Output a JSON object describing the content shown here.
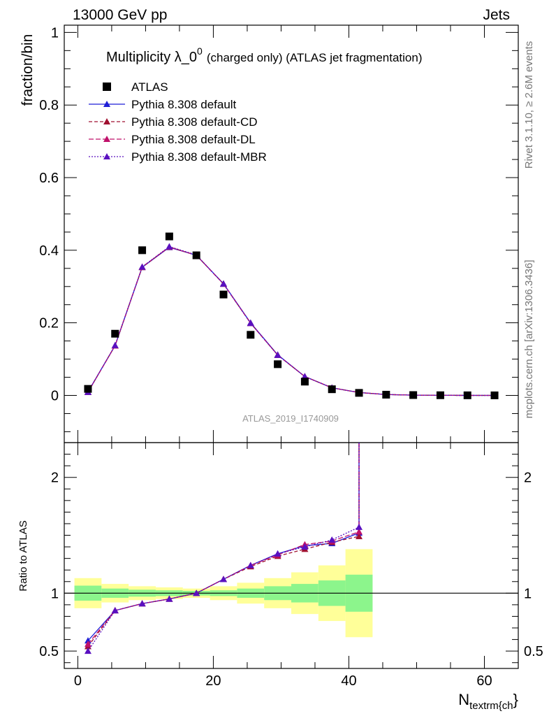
{
  "header": {
    "left": "13000 GeV pp",
    "right": "Jets"
  },
  "title": {
    "main_prefix": "Multiplicity λ_0",
    "main_sup": "0",
    "main_suffix": "(charged only) (ATLAS jet fragmentation)"
  },
  "side_labels": {
    "rivet": "Rivet 3.1.10, ≥ 2.6M events",
    "mcplots": "mcplots.cern.ch [arXiv:1306.3436]"
  },
  "watermark": "ATLAS_2019_I1740909",
  "axes": {
    "ylabel_top": "fraction/bin",
    "ylabel_bottom": "Ratio to ATLAS",
    "xlabel_main": "N",
    "xlabel_sub": "textrm{ch",
    "xlabel_end": "}"
  },
  "legend": [
    {
      "key": "atlas",
      "label": "ATLAS"
    },
    {
      "key": "default",
      "label": "Pythia 8.308 default"
    },
    {
      "key": "cd",
      "label": "Pythia 8.308 default-CD"
    },
    {
      "key": "dl",
      "label": "Pythia 8.308 default-DL"
    },
    {
      "key": "mbr",
      "label": "Pythia 8.308 default-MBR"
    }
  ],
  "colors": {
    "atlas": "#000000",
    "default": "#1f1fd6",
    "cd": "#a01030",
    "dl": "#c0106a",
    "mbr": "#5a10c0",
    "band_inner": "#8cf58c",
    "band_outer": "#ffff99"
  },
  "chart_data": [
    {
      "type": "scatter",
      "panel": "main",
      "xlim": [
        -2,
        65
      ],
      "ylim": [
        -0.13,
        1.02
      ],
      "yticks": [
        0,
        0.2,
        0.4,
        0.6,
        0.8,
        1
      ],
      "ytick_labels": [
        "0",
        "0.2",
        "0.4",
        "0.6",
        "0.8",
        "1"
      ],
      "bins": [
        [
          -0.5,
          3.5
        ],
        [
          3.5,
          7.5
        ],
        [
          7.5,
          11.5
        ],
        [
          11.5,
          15.5
        ],
        [
          15.5,
          19.5
        ],
        [
          19.5,
          23.5
        ],
        [
          23.5,
          27.5
        ],
        [
          27.5,
          31.5
        ],
        [
          31.5,
          35.5
        ],
        [
          35.5,
          39.5
        ],
        [
          39.5,
          43.5
        ],
        [
          43.5,
          47.5
        ],
        [
          47.5,
          51.5
        ],
        [
          51.5,
          55.5
        ],
        [
          55.5,
          59.5
        ],
        [
          59.5,
          63.5
        ]
      ],
      "x": [
        1.5,
        5.5,
        9.5,
        13.5,
        17.5,
        21.5,
        25.5,
        29.5,
        33.5,
        37.5,
        41.5,
        45.5,
        49.5,
        53.5,
        57.5,
        61.5
      ],
      "series": [
        {
          "key": "atlas",
          "name": "ATLAS",
          "values": [
            0.018,
            0.17,
            0.4,
            0.438,
            0.386,
            0.278,
            0.167,
            0.086,
            0.038,
            0.017,
            0.007,
            0.002,
            0.001,
            0.0005,
            0.0003,
            0.0002
          ]
        },
        {
          "key": "default",
          "name": "Pythia 8.308 default",
          "values": [
            0.01,
            0.137,
            0.353,
            0.408,
            0.386,
            0.308,
            0.2,
            0.112,
            0.052,
            0.021,
            0.008,
            0.0025,
            0.0008,
            0.0003,
            0.0001,
            5e-05
          ]
        },
        {
          "key": "cd",
          "name": "Pythia 8.308 default-CD",
          "values": [
            0.009,
            0.137,
            0.353,
            0.409,
            0.386,
            0.307,
            0.199,
            0.111,
            0.052,
            0.021,
            0.008,
            0.0025,
            0.0008,
            0.0003,
            0.0001,
            5e-05
          ]
        },
        {
          "key": "dl",
          "name": "Pythia 8.308 default-DL",
          "values": [
            0.009,
            0.137,
            0.354,
            0.409,
            0.386,
            0.307,
            0.199,
            0.111,
            0.052,
            0.021,
            0.008,
            0.0025,
            0.0008,
            0.0003,
            0.0001,
            5e-05
          ]
        },
        {
          "key": "mbr",
          "name": "Pythia 8.308 default-MBR",
          "values": [
            0.009,
            0.138,
            0.354,
            0.41,
            0.387,
            0.307,
            0.199,
            0.111,
            0.052,
            0.021,
            0.008,
            0.0025,
            0.0008,
            0.0003,
            0.0001,
            5e-05
          ]
        }
      ]
    },
    {
      "type": "line",
      "panel": "ratio",
      "xlim": [
        -2,
        65
      ],
      "ylim": [
        0.35,
        2.3
      ],
      "yticks": [
        0.5,
        1,
        2
      ],
      "ytick_labels": [
        "0.5",
        "1",
        "2"
      ],
      "xticks": [
        0,
        20,
        40,
        60
      ],
      "xtick_labels": [
        "0",
        "20",
        "40",
        "60"
      ],
      "reference": 1,
      "bins": [
        [
          -0.5,
          3.5
        ],
        [
          3.5,
          7.5
        ],
        [
          7.5,
          11.5
        ],
        [
          11.5,
          15.5
        ],
        [
          15.5,
          19.5
        ],
        [
          19.5,
          23.5
        ],
        [
          23.5,
          27.5
        ],
        [
          27.5,
          31.5
        ],
        [
          31.5,
          35.5
        ],
        [
          35.5,
          39.5
        ],
        [
          39.5,
          43.5
        ]
      ],
      "band_inner": [
        [
          0.935,
          1.065
        ],
        [
          0.96,
          1.04
        ],
        [
          0.97,
          1.03
        ],
        [
          0.975,
          1.025
        ],
        [
          0.98,
          1.02
        ],
        [
          0.975,
          1.025
        ],
        [
          0.96,
          1.04
        ],
        [
          0.94,
          1.06
        ],
        [
          0.92,
          1.08
        ],
        [
          0.89,
          1.11
        ],
        [
          0.84,
          1.16
        ]
      ],
      "band_outer": [
        [
          0.87,
          1.13
        ],
        [
          0.92,
          1.08
        ],
        [
          0.94,
          1.06
        ],
        [
          0.95,
          1.05
        ],
        [
          0.96,
          1.04
        ],
        [
          0.94,
          1.06
        ],
        [
          0.91,
          1.09
        ],
        [
          0.87,
          1.13
        ],
        [
          0.82,
          1.18
        ],
        [
          0.76,
          1.24
        ],
        [
          0.62,
          1.38
        ]
      ],
      "x": [
        1.5,
        5.5,
        9.5,
        13.5,
        17.5,
        21.5,
        25.5,
        29.5,
        33.5,
        37.5,
        41.5
      ],
      "series": [
        {
          "key": "default",
          "name": "Pythia 8.308 default",
          "values": [
            0.59,
            0.85,
            0.91,
            0.95,
            1.0,
            1.12,
            1.24,
            1.34,
            1.41,
            1.43,
            1.52
          ]
        },
        {
          "key": "cd",
          "name": "Pythia 8.308 default-CD",
          "values": [
            0.54,
            0.85,
            0.91,
            0.95,
            1.0,
            1.12,
            1.23,
            1.32,
            1.38,
            1.44,
            1.49
          ]
        },
        {
          "key": "dl",
          "name": "Pythia 8.308 default-DL",
          "values": [
            0.56,
            0.85,
            0.91,
            0.95,
            1.0,
            1.12,
            1.24,
            1.33,
            1.42,
            1.45,
            1.53
          ]
        },
        {
          "key": "mbr",
          "name": "Pythia 8.308 default-MBR",
          "values": [
            0.5,
            0.85,
            0.91,
            0.95,
            1.0,
            1.12,
            1.24,
            1.34,
            1.4,
            1.46,
            1.57
          ]
        }
      ]
    }
  ]
}
